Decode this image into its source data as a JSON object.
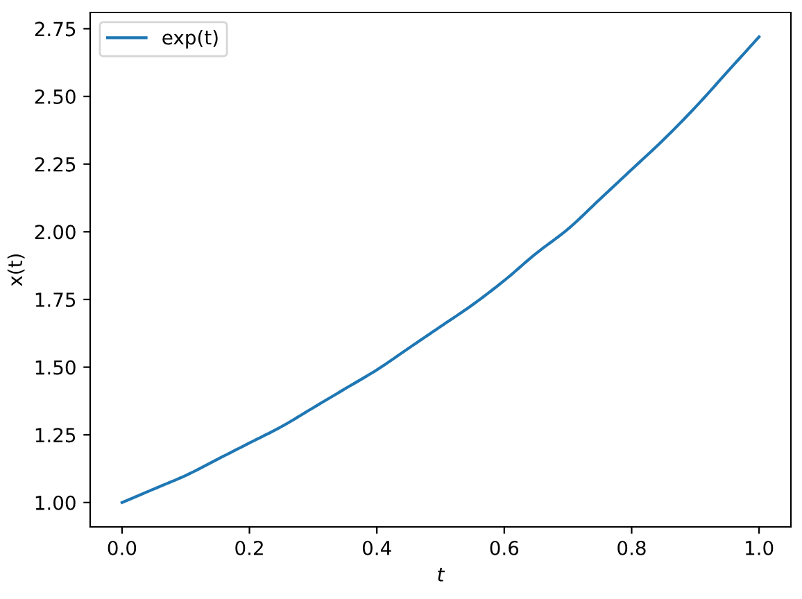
{
  "chart_data": {
    "type": "line",
    "xlabel": "t",
    "ylabel": "x(t)",
    "xlim": [
      -0.05,
      1.05
    ],
    "xticks": [
      {
        "value": 0,
        "label": "0.0"
      },
      {
        "value": 0.2,
        "label": "0.2"
      },
      {
        "value": 0.4,
        "label": "0.4"
      },
      {
        "value": 0.6,
        "label": "0.6"
      },
      {
        "value": 0.8,
        "label": "0.8"
      },
      {
        "value": 1,
        "label": "1.0"
      }
    ],
    "ylim": [
      0.91,
      2.81
    ],
    "yticks": [
      {
        "value": 1,
        "label": "1.00"
      },
      {
        "value": 1.25,
        "label": "1.25"
      },
      {
        "value": 1.5,
        "label": "1.50"
      },
      {
        "value": 1.75,
        "label": "1.75"
      },
      {
        "value": 2,
        "label": "2.00"
      },
      {
        "value": 2.25,
        "label": "2.25"
      },
      {
        "value": 2.5,
        "label": "2.50"
      },
      {
        "value": 2.75,
        "label": "2.75"
      }
    ],
    "grid": false,
    "legend": "top left",
    "line_style": "solid",
    "marker": "none",
    "series": [
      {
        "name": "exp(t)",
        "color": "#1f77b4",
        "x": [
          0.0,
          0.05,
          0.1,
          0.15,
          0.2,
          0.25,
          0.3,
          0.35,
          0.4,
          0.45,
          0.5,
          0.55,
          0.6,
          0.65,
          0.7,
          0.75,
          0.8,
          0.85,
          0.9,
          0.95,
          1.0
        ],
        "values": [
          1.0,
          1.05,
          1.1,
          1.16,
          1.22,
          1.28,
          1.35,
          1.42,
          1.49,
          1.57,
          1.65,
          1.73,
          1.82,
          1.92,
          2.01,
          2.12,
          2.23,
          2.34,
          2.46,
          2.59,
          2.72
        ]
      }
    ]
  }
}
